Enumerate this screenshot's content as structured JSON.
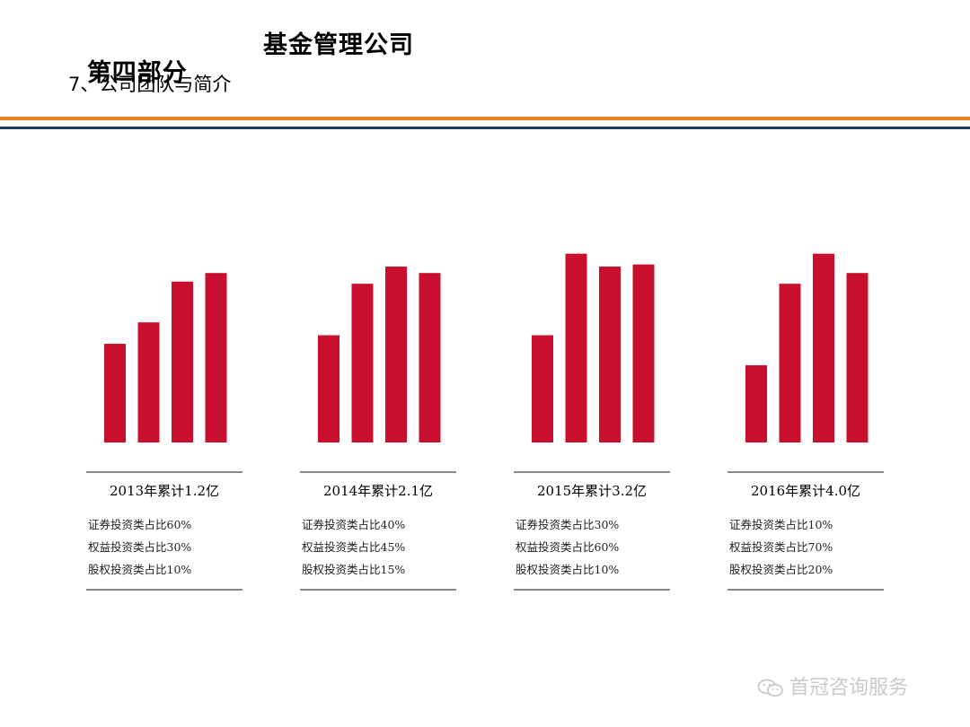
{
  "header": {
    "section": "第四部分",
    "section_title": "基金管理公司",
    "subtitle": "7、公司团队与简介"
  },
  "colors": {
    "bar": "#c8102e",
    "accent_line": "#e8821e",
    "navy_line": "#1f3a5f"
  },
  "watermark": {
    "icon": "wechat-icon",
    "text": "首冠咨询服务"
  },
  "chart_data": [
    {
      "type": "bar",
      "caption": "2013年累计1.2亿",
      "values": [
        4.6,
        5.6,
        7.5,
        7.9
      ],
      "ylim": [
        0,
        10
      ],
      "lines": [
        "证券投资类占比60%",
        "权益投资类占比30%",
        "股权投资类占比10%"
      ]
    },
    {
      "type": "bar",
      "caption": "2014年累计2.1亿",
      "values": [
        5.0,
        7.4,
        8.2,
        7.9
      ],
      "ylim": [
        0,
        10
      ],
      "lines": [
        "证券投资类占比40%",
        "权益投资类占比45%",
        "股权投资类占比15%"
      ]
    },
    {
      "type": "bar",
      "caption": "2015年累计3.2亿",
      "values": [
        5.0,
        8.8,
        8.2,
        8.3
      ],
      "ylim": [
        0,
        10
      ],
      "lines": [
        "证券投资类占比30%",
        "权益投资类占比60%",
        "股权投资类占比10%"
      ]
    },
    {
      "type": "bar",
      "caption": "2016年累计4.0亿",
      "values": [
        3.6,
        7.4,
        8.8,
        7.9
      ],
      "ylim": [
        0,
        10
      ],
      "lines": [
        "证券投资类占比10%",
        "权益投资类占比70%",
        "股权投资类占比20%"
      ]
    }
  ]
}
